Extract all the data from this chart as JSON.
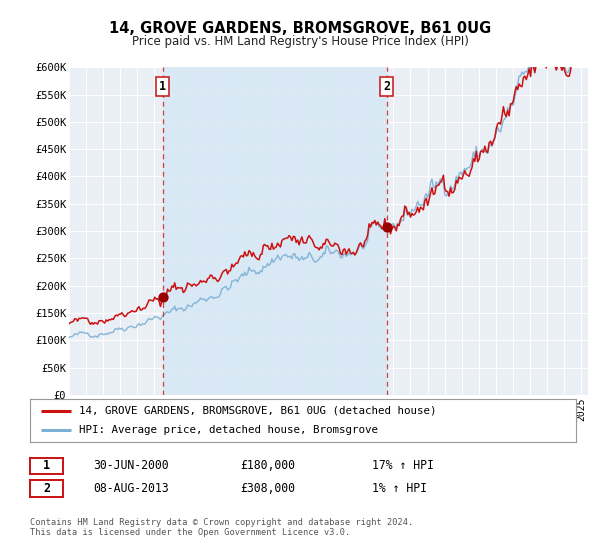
{
  "title": "14, GROVE GARDENS, BROMSGROVE, B61 0UG",
  "subtitle": "Price paid vs. HM Land Registry's House Price Index (HPI)",
  "ylim": [
    0,
    600000
  ],
  "xlim_start": 1995.0,
  "xlim_end": 2025.4,
  "sale1_date": 2000.496,
  "sale1_value": 180000,
  "sale2_date": 2013.598,
  "sale2_value": 308000,
  "hpi_line_color": "#7bafd4",
  "price_line_color": "#cc1111",
  "sale_dot_color": "#990000",
  "vline_color": "#cc2222",
  "fill_color": "#d8e8f5",
  "background_color": "#e8eef4",
  "chart_bg": "#eef2f8",
  "legend_entry1": "14, GROVE GARDENS, BROMSGROVE, B61 0UG (detached house)",
  "legend_entry2": "HPI: Average price, detached house, Bromsgrove",
  "annotation1_date": "30-JUN-2000",
  "annotation1_price": "£180,000",
  "annotation1_hpi": "17% ↑ HPI",
  "annotation2_date": "08-AUG-2013",
  "annotation2_price": "£308,000",
  "annotation2_hpi": "1% ↑ HPI",
  "footer": "Contains HM Land Registry data © Crown copyright and database right 2024.\nThis data is licensed under the Open Government Licence v3.0.",
  "yticks": [
    0,
    50000,
    100000,
    150000,
    200000,
    250000,
    300000,
    350000,
    400000,
    450000,
    500000,
    550000,
    600000
  ],
  "ytick_labels": [
    "£0",
    "£50K",
    "£100K",
    "£150K",
    "£200K",
    "£250K",
    "£300K",
    "£350K",
    "£400K",
    "£450K",
    "£500K",
    "£550K",
    "£600K"
  ]
}
